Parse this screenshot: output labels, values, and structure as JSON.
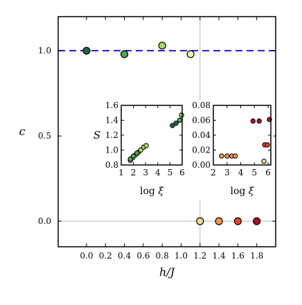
{
  "chart_data": [
    {
      "type": "scatter",
      "xlabel": "h/J",
      "ylabel": "c",
      "xlim": [
        -0.3,
        2.0
      ],
      "ylim": [
        -0.15,
        1.2
      ],
      "xticks": [
        0.0,
        0.2,
        0.4,
        0.6,
        0.8,
        1.0,
        1.2,
        1.4,
        1.6,
        1.8
      ],
      "xtick_labels": [
        "0.0",
        "0.2",
        "0.4",
        "0.6",
        "0.8",
        "1.0",
        "1.2",
        "1.4",
        "1.6",
        "1.8"
      ],
      "yticks": [
        0.0,
        0.5,
        1.0
      ],
      "ytick_labels": [
        "0.0",
        "0.5",
        "1.0"
      ],
      "reference_lines": [
        {
          "orientation": "horizontal",
          "value": 1.0,
          "style": "dashed",
          "color": "#1a1ad6"
        },
        {
          "orientation": "horizontal",
          "value": 0.0,
          "style": "solid",
          "color": "#b8b8b8"
        },
        {
          "orientation": "vertical",
          "value": 1.2,
          "style": "solid",
          "color": "#b8b8b8"
        }
      ],
      "points": [
        {
          "x": 0.0,
          "y": 1.0,
          "color": "#1e6b3a"
        },
        {
          "x": 0.4,
          "y": 0.98,
          "color": "#4fa84f"
        },
        {
          "x": 0.8,
          "y": 1.03,
          "color": "#a8d96a"
        },
        {
          "x": 1.1,
          "y": 0.98,
          "color": "#eef5a8"
        },
        {
          "x": 1.2,
          "y": 0.0,
          "color": "#f6d98a"
        },
        {
          "x": 1.4,
          "y": 0.0,
          "color": "#f29a4a"
        },
        {
          "x": 1.6,
          "y": 0.0,
          "color": "#e0452a"
        },
        {
          "x": 1.8,
          "y": 0.0,
          "color": "#a8102a"
        }
      ]
    },
    {
      "type": "scatter",
      "xlabel": "log ξ",
      "ylabel": "S",
      "xlim": [
        1,
        6
      ],
      "ylim": [
        0.8,
        1.6
      ],
      "xticks": [
        1,
        2,
        3,
        4,
        5,
        6
      ],
      "xtick_labels": [
        "1",
        "2",
        "3",
        "4",
        "5",
        "6"
      ],
      "yticks": [
        0.8,
        1.0,
        1.2,
        1.4,
        1.6
      ],
      "ytick_labels": [
        "0.8",
        "1.0",
        "1.2",
        "1.4",
        "1.6"
      ],
      "points": [
        {
          "x": 1.75,
          "y": 0.86,
          "color": "#a8d96a"
        },
        {
          "x": 1.95,
          "y": 0.9,
          "color": "#a8d96a"
        },
        {
          "x": 2.2,
          "y": 0.94,
          "color": "#a8d96a"
        },
        {
          "x": 2.4,
          "y": 0.97,
          "color": "#a8d96a"
        },
        {
          "x": 2.6,
          "y": 1.0,
          "color": "#a8d96a"
        },
        {
          "x": 2.85,
          "y": 1.04,
          "color": "#a8d96a"
        },
        {
          "x": 3.05,
          "y": 1.06,
          "color": "#a8d96a"
        },
        {
          "x": 1.75,
          "y": 0.88,
          "color": "#4fa84f"
        },
        {
          "x": 2.0,
          "y": 0.92,
          "color": "#4fa84f"
        },
        {
          "x": 2.3,
          "y": 0.96,
          "color": "#4fa84f"
        },
        {
          "x": 5.2,
          "y": 1.33,
          "color": "#1e6b3a"
        },
        {
          "x": 5.5,
          "y": 1.36,
          "color": "#1e6b3a"
        },
        {
          "x": 5.8,
          "y": 1.4,
          "color": "#4fa84f"
        },
        {
          "x": 5.95,
          "y": 1.47,
          "color": "#a8d96a"
        }
      ]
    },
    {
      "type": "scatter",
      "xlabel": "log ξ",
      "ylabel": "",
      "xlim": [
        2,
        6.2
      ],
      "ylim": [
        0.0,
        0.08
      ],
      "xticks": [
        2,
        3,
        4,
        5,
        6
      ],
      "xtick_labels": [
        "2",
        "3",
        "4",
        "5",
        "6"
      ],
      "yticks": [
        0.0,
        0.02,
        0.04,
        0.06,
        0.08
      ],
      "ytick_labels": [
        "0.00",
        "0.02",
        "0.04",
        "0.06",
        "0.08"
      ],
      "points": [
        {
          "x": 2.6,
          "y": 0.012,
          "color": "#f29a4a"
        },
        {
          "x": 3.0,
          "y": 0.012,
          "color": "#f29a4a"
        },
        {
          "x": 3.35,
          "y": 0.012,
          "color": "#f29a4a"
        },
        {
          "x": 3.6,
          "y": 0.012,
          "color": "#f29a4a"
        },
        {
          "x": 4.9,
          "y": 0.059,
          "color": "#a8102a"
        },
        {
          "x": 5.35,
          "y": 0.059,
          "color": "#a8102a"
        },
        {
          "x": 6.1,
          "y": 0.061,
          "color": "#a8102a"
        },
        {
          "x": 5.75,
          "y": 0.027,
          "color": "#e0452a"
        },
        {
          "x": 5.95,
          "y": 0.027,
          "color": "#e0452a"
        },
        {
          "x": 5.7,
          "y": 0.005,
          "color": "#f6d98a"
        }
      ]
    }
  ]
}
